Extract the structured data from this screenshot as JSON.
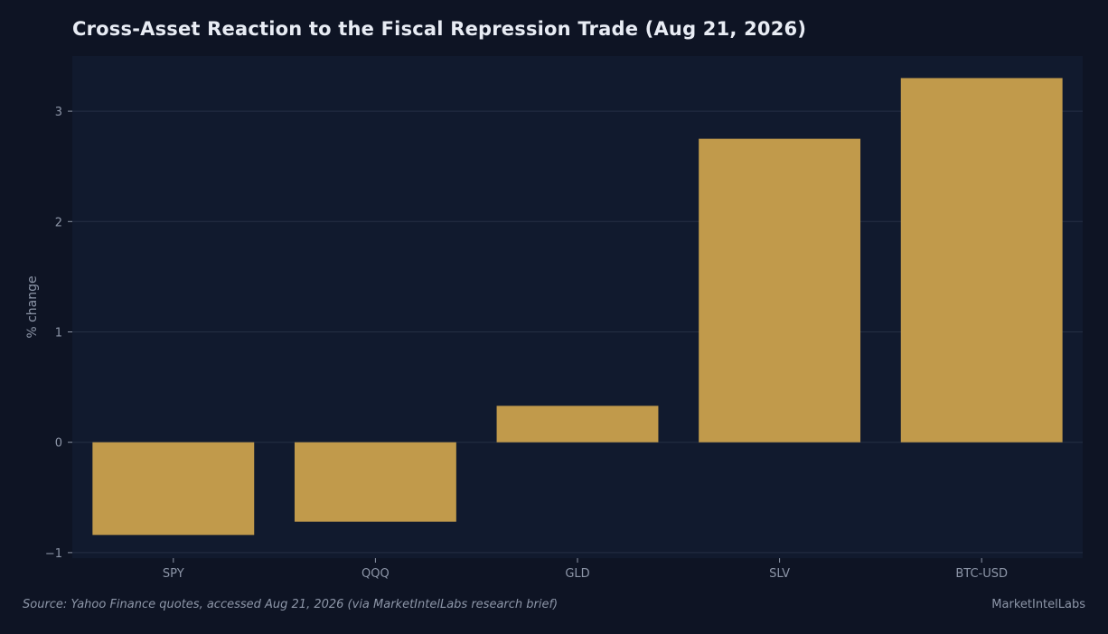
{
  "chart_data": {
    "type": "bar",
    "title": "Cross-Asset Reaction to the Fiscal Repression Trade (Aug 21, 2026)",
    "xlabel": "",
    "ylabel": "% change",
    "categories": [
      "SPY",
      "QQQ",
      "GLD",
      "SLV",
      "BTC-USD"
    ],
    "values": [
      -0.84,
      -0.72,
      0.33,
      2.75,
      3.3
    ],
    "ylim": [
      -1.05,
      3.5
    ],
    "yticks": [
      -1,
      0,
      1,
      2,
      3
    ],
    "ytick_labels": [
      "−1",
      "0",
      "1",
      "2",
      "3"
    ],
    "grid": true,
    "legend": "none",
    "colors": {
      "bar": "#c19a4b",
      "plot_bg": "#111a2e",
      "page_bg": "#0e1424",
      "grid": "#252f44",
      "tick_text": "#8d96a8"
    }
  },
  "footer": {
    "source": "Source: Yahoo Finance quotes, accessed Aug 21, 2026 (via MarketIntelLabs research brief)",
    "brand": "MarketIntelLabs"
  }
}
